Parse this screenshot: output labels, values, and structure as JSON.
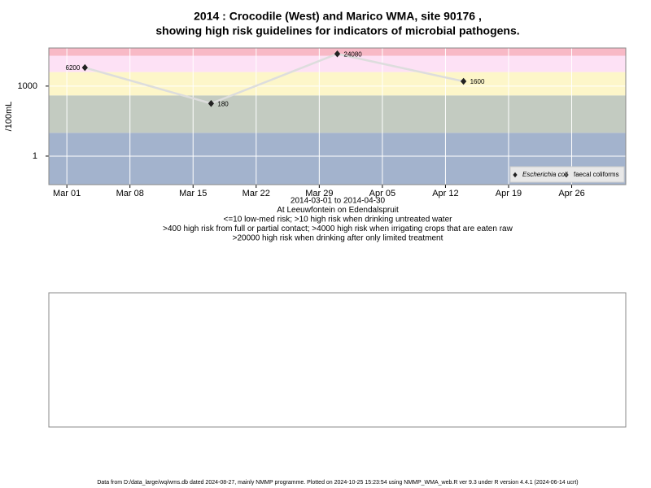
{
  "chart_data": {
    "type": "line",
    "title": "2014 : Crocodile (West) and Marico WMA, site 90176 ,",
    "subtitle": "showing high risk guidelines for indicators of microbial pathogens.",
    "y_label": "/100mL",
    "x_label_lines": [
      "2014-03-01 to 2014-04-30",
      "At Leeuwfontein on Edendalspruit",
      "<=10 low-med risk; >10 high risk when drinking untreated water",
      ">400 high risk from full or partial contact; >4000 high risk when irrigating crops that are eaten raw",
      ">20000 high risk when drinking after only limited treatment"
    ],
    "footer": "Data from D:/data_large/wq/wms.db dated 2024-08-27, mainly NMMP programme. Plotted on 2024-10-25 15:23:54 using NMMP_WMA_web.R ver 9.3 under R version 4.4.1 (2024-06-14 ucrt)",
    "x": [
      "2014-03-03",
      "2014-03-17",
      "2014-03-31",
      "2014-04-14"
    ],
    "series": [
      {
        "name": "Escherichia coli",
        "color": "#222222",
        "marker": "filled-diamond",
        "values": [
          6200,
          180,
          24080,
          1600
        ]
      },
      {
        "name": "faecal coliforms",
        "color": "#222222",
        "marker": "open-diamond",
        "values": [
          null,
          null,
          null,
          null
        ]
      }
    ],
    "line_color": "#dddddd",
    "xlim": [
      "2014-02-27",
      "2014-05-02"
    ],
    "xticks": [
      {
        "value": "2014-03-01",
        "label": "Mar 01"
      },
      {
        "value": "2014-03-08",
        "label": "Mar 08"
      },
      {
        "value": "2014-03-15",
        "label": "Mar 15"
      },
      {
        "value": "2014-03-22",
        "label": "Mar 22"
      },
      {
        "value": "2014-03-29",
        "label": "Mar 29"
      },
      {
        "value": "2014-04-05",
        "label": "Apr 05"
      },
      {
        "value": "2014-04-12",
        "label": "Apr 12"
      },
      {
        "value": "2014-04-19",
        "label": "Apr 19"
      },
      {
        "value": "2014-04-26",
        "label": "Apr 26"
      }
    ],
    "ylim": [
      0.06,
      43000
    ],
    "yticks": [
      1,
      1000
    ],
    "log_y": true,
    "grid": true,
    "legend": "bottom-right",
    "bands": [
      {
        "from": 0.06,
        "to": 10,
        "color": "#a3b3cd"
      },
      {
        "from": 10,
        "to": 400,
        "color": "#c3cbc1"
      },
      {
        "from": 400,
        "to": 4000,
        "color": "#fdf6c9"
      },
      {
        "from": 4000,
        "to": 20000,
        "color": "#fde1f5"
      },
      {
        "from": 20000,
        "to": 43000,
        "color": "#f8b9c6"
      }
    ]
  }
}
